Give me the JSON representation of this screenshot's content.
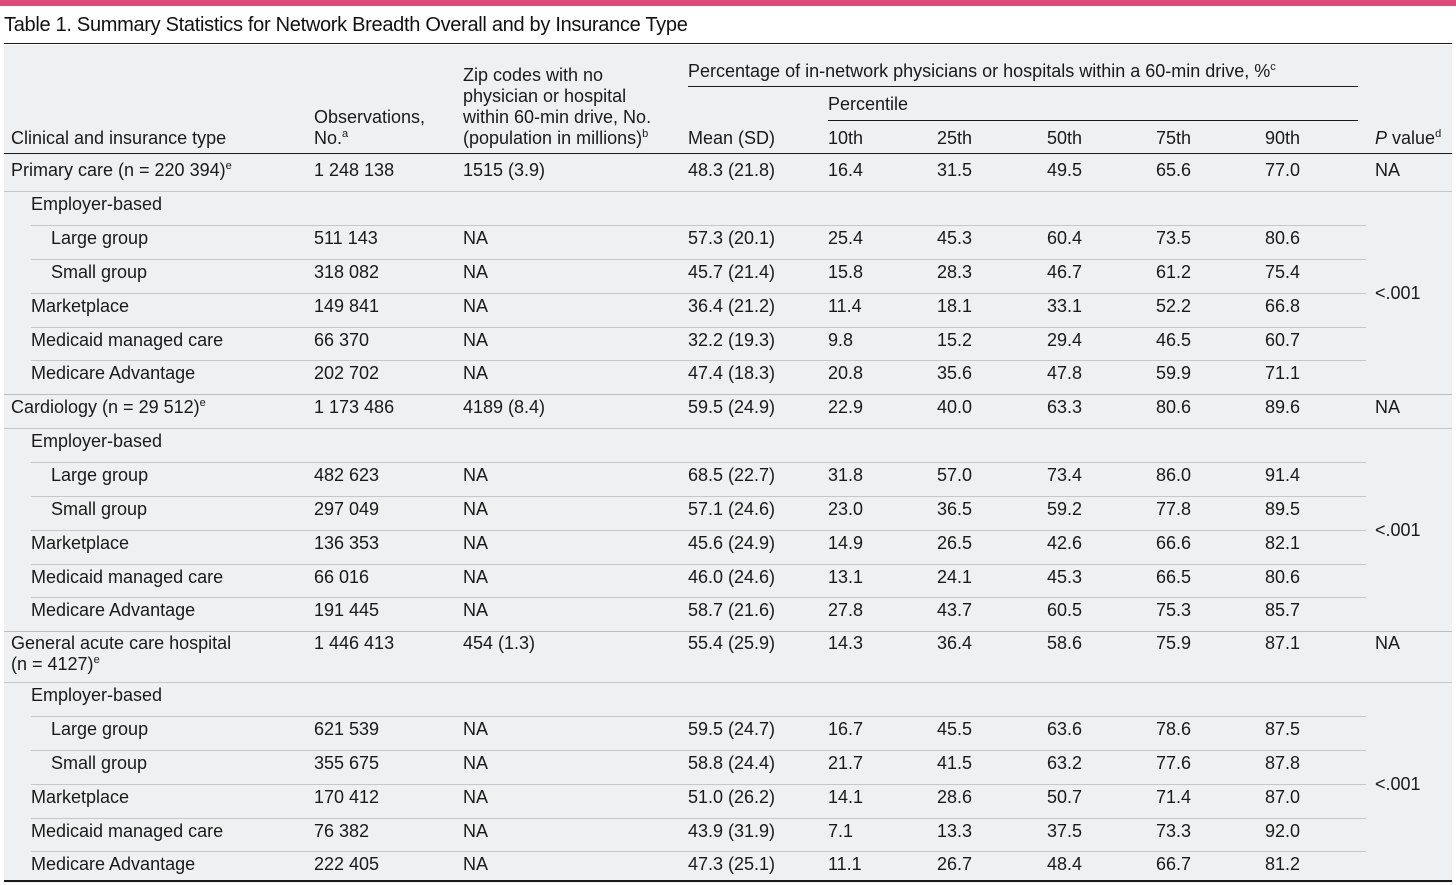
{
  "title": "Table 1. Summary Statistics for Network Breadth Overall and by Insurance Type",
  "headers": {
    "clinical": "Clinical and insurance type",
    "observations_l1": "Observations,",
    "observations_l2": "No.",
    "observations_sup": "a",
    "zip_l1": "Zip codes with no",
    "zip_l2": "physician or hospital",
    "zip_l3": "within 60-min drive, No.",
    "zip_l4": "(population in millions)",
    "zip_sup": "b",
    "pct_group": "Percentage of in-network physicians or hospitals within a 60-min drive, %",
    "pct_group_sup": "c",
    "percentile": "Percentile",
    "mean": "Mean (SD)",
    "p10": "10th",
    "p25": "25th",
    "p50": "50th",
    "p75": "75th",
    "p90": "90th",
    "pvalue_italic": "P",
    "pvalue_rest": " value",
    "pvalue_sup": "d"
  },
  "sections": [
    {
      "label": "Primary care (n = 220 394)",
      "label_sup": "e",
      "obs": "1 248 138",
      "zip": "1515 (3.9)",
      "mean": "48.3 (21.8)",
      "p10": "16.4",
      "p25": "31.5",
      "p50": "49.5",
      "p75": "65.6",
      "p90": "77.0",
      "pvalue": "NA",
      "employer_label": "Employer-based",
      "subgroup_pvalue": "<.001",
      "rows": [
        {
          "label": "Large group",
          "obs": "511 143",
          "zip": "NA",
          "mean": "57.3 (20.1)",
          "p10": "25.4",
          "p25": "45.3",
          "p50": "60.4",
          "p75": "73.5",
          "p90": "80.6"
        },
        {
          "label": "Small group",
          "obs": "318 082",
          "zip": "NA",
          "mean": "45.7 (21.4)",
          "p10": "15.8",
          "p25": "28.3",
          "p50": "46.7",
          "p75": "61.2",
          "p90": "75.4"
        },
        {
          "label": "Marketplace",
          "obs": "149 841",
          "zip": "NA",
          "mean": "36.4 (21.2)",
          "p10": "11.4",
          "p25": "18.1",
          "p50": "33.1",
          "p75": "52.2",
          "p90": "66.8"
        },
        {
          "label": "Medicaid managed care",
          "obs": "66 370",
          "zip": "NA",
          "mean": "32.2 (19.3)",
          "p10": "9.8",
          "p25": "15.2",
          "p50": "29.4",
          "p75": "46.5",
          "p90": "60.7"
        },
        {
          "label": "Medicare Advantage",
          "obs": "202 702",
          "zip": "NA",
          "mean": "47.4 (18.3)",
          "p10": "20.8",
          "p25": "35.6",
          "p50": "47.8",
          "p75": "59.9",
          "p90": "71.1"
        }
      ]
    },
    {
      "label": "Cardiology (n = 29 512)",
      "label_sup": "e",
      "obs": "1 173 486",
      "zip": "4189 (8.4)",
      "mean": "59.5 (24.9)",
      "p10": "22.9",
      "p25": "40.0",
      "p50": "63.3",
      "p75": "80.6",
      "p90": "89.6",
      "pvalue": "NA",
      "employer_label": "Employer-based",
      "subgroup_pvalue": "<.001",
      "rows": [
        {
          "label": "Large group",
          "obs": "482 623",
          "zip": "NA",
          "mean": "68.5 (22.7)",
          "p10": "31.8",
          "p25": "57.0",
          "p50": "73.4",
          "p75": "86.0",
          "p90": "91.4"
        },
        {
          "label": "Small group",
          "obs": "297 049",
          "zip": "NA",
          "mean": "57.1 (24.6)",
          "p10": "23.0",
          "p25": "36.5",
          "p50": "59.2",
          "p75": "77.8",
          "p90": "89.5"
        },
        {
          "label": "Marketplace",
          "obs": "136 353",
          "zip": "NA",
          "mean": "45.6 (24.9)",
          "p10": "14.9",
          "p25": "26.5",
          "p50": "42.6",
          "p75": "66.6",
          "p90": "82.1"
        },
        {
          "label": "Medicaid managed care",
          "obs": "66 016",
          "zip": "NA",
          "mean": "46.0 (24.6)",
          "p10": "13.1",
          "p25": "24.1",
          "p50": "45.3",
          "p75": "66.5",
          "p90": "80.6"
        },
        {
          "label": "Medicare Advantage",
          "obs": "191 445",
          "zip": "NA",
          "mean": "58.7 (21.6)",
          "p10": "27.8",
          "p25": "43.7",
          "p50": "60.5",
          "p75": "75.3",
          "p90": "85.7"
        }
      ]
    },
    {
      "label": "General acute care hospital",
      "label_line2": "(n = 4127)",
      "label_sup": "e",
      "obs": "1 446 413",
      "zip": "454 (1.3)",
      "mean": "55.4 (25.9)",
      "p10": "14.3",
      "p25": "36.4",
      "p50": "58.6",
      "p75": "75.9",
      "p90": "87.1",
      "pvalue": "NA",
      "employer_label": "Employer-based",
      "subgroup_pvalue": "<.001",
      "rows": [
        {
          "label": "Large group",
          "obs": "621 539",
          "zip": "NA",
          "mean": "59.5 (24.7)",
          "p10": "16.7",
          "p25": "45.5",
          "p50": "63.6",
          "p75": "78.6",
          "p90": "87.5"
        },
        {
          "label": "Small group",
          "obs": "355 675",
          "zip": "NA",
          "mean": "58.8 (24.4)",
          "p10": "21.7",
          "p25": "41.5",
          "p50": "63.2",
          "p75": "77.6",
          "p90": "87.8"
        },
        {
          "label": "Marketplace",
          "obs": "170 412",
          "zip": "NA",
          "mean": "51.0 (26.2)",
          "p10": "14.1",
          "p25": "28.6",
          "p50": "50.7",
          "p75": "71.4",
          "p90": "87.0"
        },
        {
          "label": "Medicaid managed care",
          "obs": "76 382",
          "zip": "NA",
          "mean": "43.9 (31.9)",
          "p10": "7.1",
          "p25": "13.3",
          "p50": "37.5",
          "p75": "73.3",
          "p90": "92.0"
        },
        {
          "label": "Medicare Advantage",
          "obs": "222 405",
          "zip": "NA",
          "mean": "47.3 (25.1)",
          "p10": "11.1",
          "p25": "26.7",
          "p50": "48.4",
          "p75": "66.7",
          "p90": "81.2"
        }
      ]
    }
  ]
}
